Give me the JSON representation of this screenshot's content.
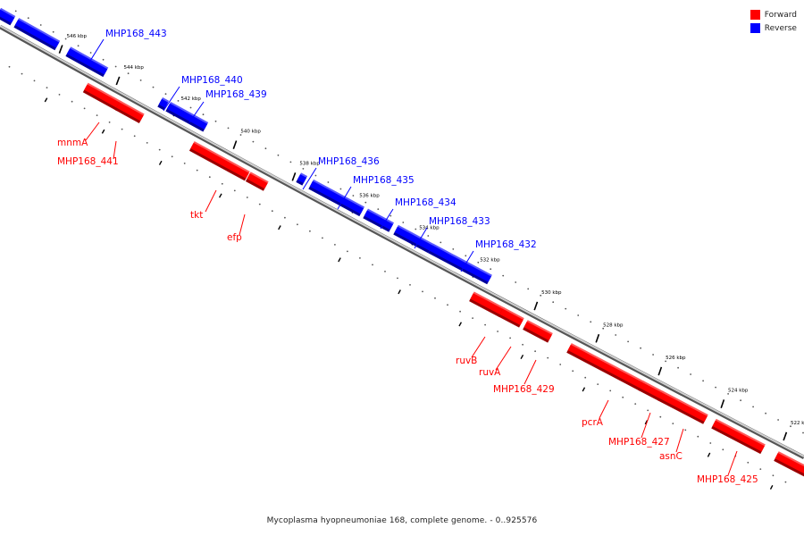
{
  "legend": [
    {
      "label": "Forward",
      "color": "#ff0000"
    },
    {
      "label": "Reverse",
      "color": "#0000ff"
    }
  ],
  "caption": "Mycoplasma hyopneumoniae 168, complete genome. - 0..925576",
  "ticks": [
    "546 kbp",
    "544 kbp",
    "542 kbp",
    "540 kbp",
    "538 kbp",
    "536 kbp",
    "534 kbp",
    "532 kbp",
    "530 kbp",
    "528 kbp",
    "526 kbp",
    "524 kbp",
    "522 kbp"
  ],
  "genes": [
    {
      "name": "",
      "strand": "reverse"
    },
    {
      "name": "",
      "strand": "reverse"
    },
    {
      "name": "MHP168_443",
      "strand": "reverse"
    },
    {
      "name": "mnmA",
      "strand": "forward"
    },
    {
      "name": "MHP168_441",
      "strand": "forward"
    },
    {
      "name": "MHP168_440",
      "strand": "reverse"
    },
    {
      "name": "MHP168_439",
      "strand": "reverse"
    },
    {
      "name": "tkt",
      "strand": "forward"
    },
    {
      "name": "efp",
      "strand": "forward"
    },
    {
      "name": "MHP168_436",
      "strand": "reverse"
    },
    {
      "name": "MHP168_435",
      "strand": "reverse"
    },
    {
      "name": "MHP168_434",
      "strand": "reverse"
    },
    {
      "name": "MHP168_433",
      "strand": "reverse"
    },
    {
      "name": "MHP168_432",
      "strand": "reverse"
    },
    {
      "name": "ruvB",
      "strand": "forward"
    },
    {
      "name": "ruvA",
      "strand": "forward"
    },
    {
      "name": "MHP168_429",
      "strand": "forward"
    },
    {
      "name": "pcrA",
      "strand": "forward"
    },
    {
      "name": "MHP168_427",
      "strand": "forward"
    },
    {
      "name": "asnC",
      "strand": "forward"
    },
    {
      "name": "MHP168_425",
      "strand": "forward"
    },
    {
      "name": "",
      "strand": "forward"
    }
  ]
}
